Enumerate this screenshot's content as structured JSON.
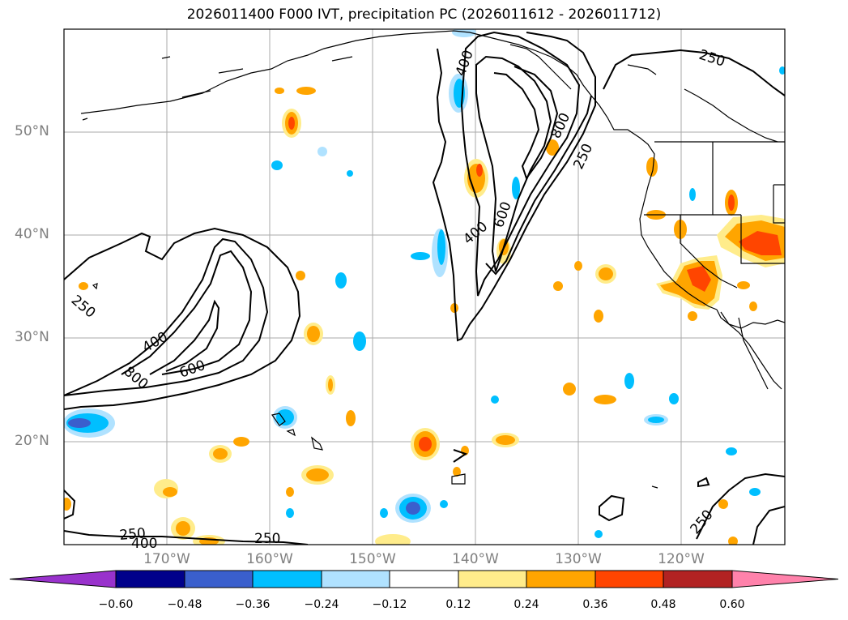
{
  "title": "2026011400 F000 IVT, precipitation PC (2026011612 - 2026011712)",
  "lat_labels": [
    "50°N",
    "40°N",
    "30°N",
    "20°N"
  ],
  "lon_labels": [
    "170°W",
    "160°W",
    "150°W",
    "140°W",
    "130°W",
    "120°W"
  ],
  "contour_labels": {
    "east": [
      "400",
      "800",
      "250",
      "400",
      "600",
      "250",
      "250"
    ],
    "west": [
      "250",
      "400",
      "800",
      "600",
      "250",
      "400",
      "250"
    ]
  },
  "colorbar": {
    "ticks": [
      "−0.60",
      "−0.48",
      "−0.36",
      "−0.24",
      "−0.12",
      "0.12",
      "0.24",
      "0.36",
      "0.48",
      "0.60"
    ],
    "colors": [
      "#9932cc",
      "#00008b",
      "#3a5fcd",
      "#00bfff",
      "#b0e2ff",
      "#ffffff",
      "#ffec8b",
      "#ffa500",
      "#ff4500",
      "#b22222",
      "#ff82ab"
    ]
  }
}
